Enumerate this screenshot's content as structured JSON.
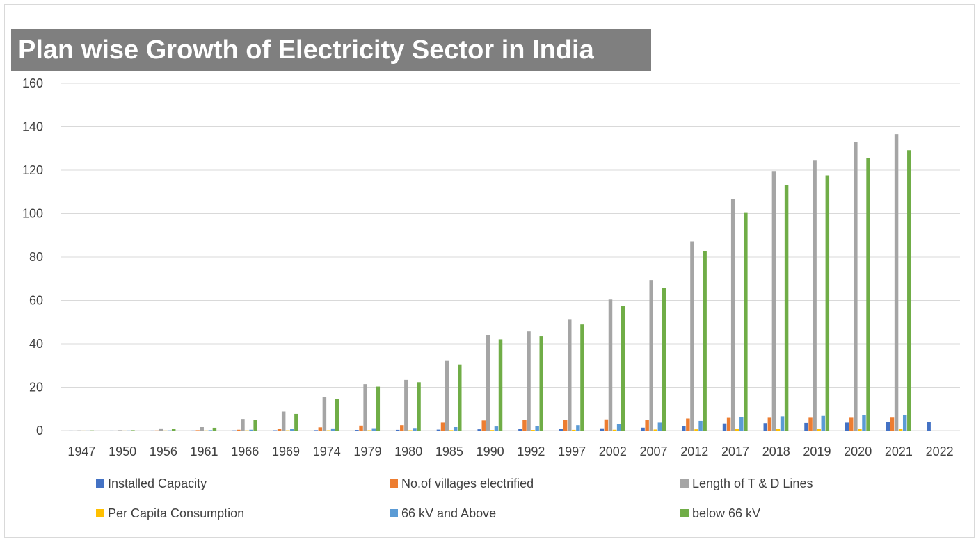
{
  "chart_data": {
    "type": "bar",
    "title": "Plan wise Growth of Electricity Sector in India",
    "xlabel": "",
    "ylabel": "",
    "ylim": [
      0,
      160
    ],
    "y_ticks": [
      "0",
      "20",
      "40",
      "60",
      "80",
      "100",
      "120",
      "140",
      "160"
    ],
    "grid": true,
    "legend_position": "bottom",
    "categories": [
      "1947",
      "1950",
      "1956",
      "1961",
      "1966",
      "1969",
      "1974",
      "1979",
      "1980",
      "1985",
      "1990",
      "1992",
      "1997",
      "2002",
      "2007",
      "2012",
      "2017",
      "2018",
      "2019",
      "2020",
      "2021",
      "2022"
    ],
    "series": [
      {
        "name": "Installed Capacity",
        "color": "#4472c4",
        "values": [
          0.02,
          0.02,
          0.03,
          0.05,
          0.1,
          0.15,
          0.2,
          0.3,
          0.35,
          0.45,
          0.6,
          0.7,
          0.9,
          1.05,
          1.35,
          2.0,
          3.3,
          3.45,
          3.55,
          3.7,
          3.85,
          4.0
        ]
      },
      {
        "name": "No.of villages electrified",
        "color": "#ed7d31",
        "values": [
          0.0,
          0.0,
          0.07,
          0.2,
          0.4,
          0.7,
          1.5,
          2.3,
          2.5,
          3.7,
          4.7,
          4.9,
          5.0,
          5.2,
          4.9,
          5.6,
          5.9,
          5.95,
          5.95,
          5.95,
          6.0,
          0
        ]
      },
      {
        "name": "Length of T & D Lines",
        "color": "#a5a5a5",
        "values": [
          0.1,
          0.2,
          1.0,
          1.6,
          5.4,
          8.8,
          15.4,
          21.4,
          23.4,
          32.1,
          44.0,
          45.7,
          51.4,
          60.4,
          69.4,
          87.2,
          106.8,
          119.6,
          124.4,
          132.8,
          136.6,
          0
        ]
      },
      {
        "name": "Per Capita Consumption",
        "color": "#ffc000",
        "values": [
          0.02,
          0.02,
          0.04,
          0.06,
          0.1,
          0.12,
          0.14,
          0.15,
          0.15,
          0.2,
          0.25,
          0.3,
          0.35,
          0.4,
          0.5,
          0.6,
          0.8,
          0.85,
          0.9,
          0.9,
          0.95,
          0
        ]
      },
      {
        "name": "66 kV and Above",
        "color": "#5b9bd5",
        "values": [
          0.02,
          0.05,
          0.1,
          0.2,
          0.4,
          0.7,
          1.0,
          1.1,
          1.2,
          1.6,
          1.9,
          2.2,
          2.5,
          3.0,
          3.7,
          4.5,
          6.3,
          6.6,
          6.8,
          7.1,
          7.3,
          0
        ]
      },
      {
        "name": "below 66 kV",
        "color": "#70ad47",
        "values": [
          0.1,
          0.2,
          0.8,
          1.3,
          5.0,
          7.7,
          14.4,
          20.3,
          22.3,
          30.5,
          42.1,
          43.5,
          48.9,
          57.3,
          65.7,
          82.8,
          100.6,
          113.0,
          117.6,
          125.6,
          129.2,
          0
        ]
      }
    ]
  }
}
